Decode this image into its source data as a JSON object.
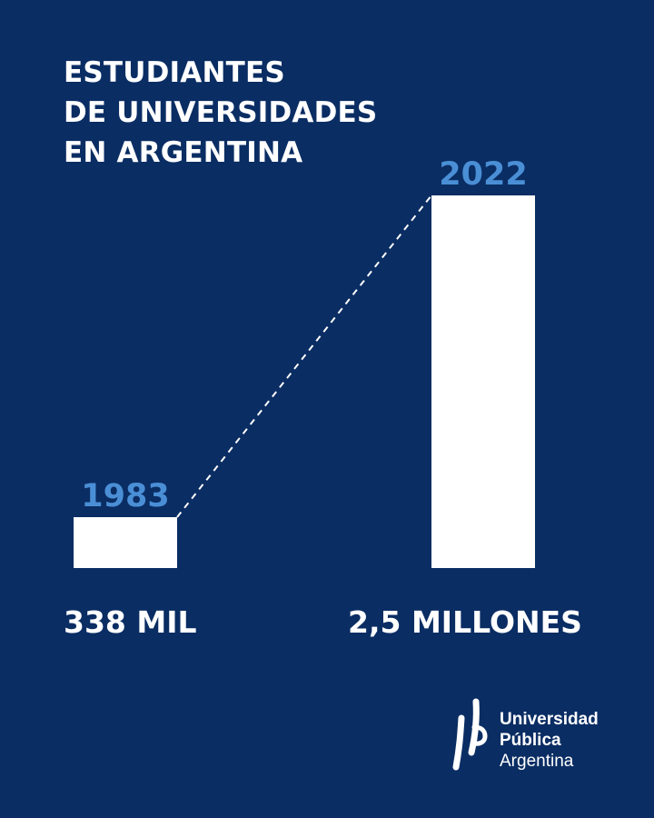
{
  "title_lines": [
    "ESTUDIANTES",
    "DE UNIVERSIDADES",
    "EN ARGENTINA"
  ],
  "colors": {
    "background": "#0a2d63",
    "bar": "#ffffff",
    "year_label": "#4a8fd6",
    "text": "#ffffff"
  },
  "chart_data": {
    "type": "bar",
    "title": "ESTUDIANTES DE UNIVERSIDADES EN ARGENTINA",
    "categories": [
      "1983",
      "2022"
    ],
    "values": [
      338000,
      2500000
    ],
    "value_labels": [
      "338 MIL",
      "2,5 MILLONES"
    ],
    "connector": "dashed-line",
    "grid": false,
    "axes_visible": false
  },
  "logo": {
    "icon": "upa-logo-icon",
    "lines": [
      "Universidad",
      "Pública",
      "Argentina"
    ]
  }
}
